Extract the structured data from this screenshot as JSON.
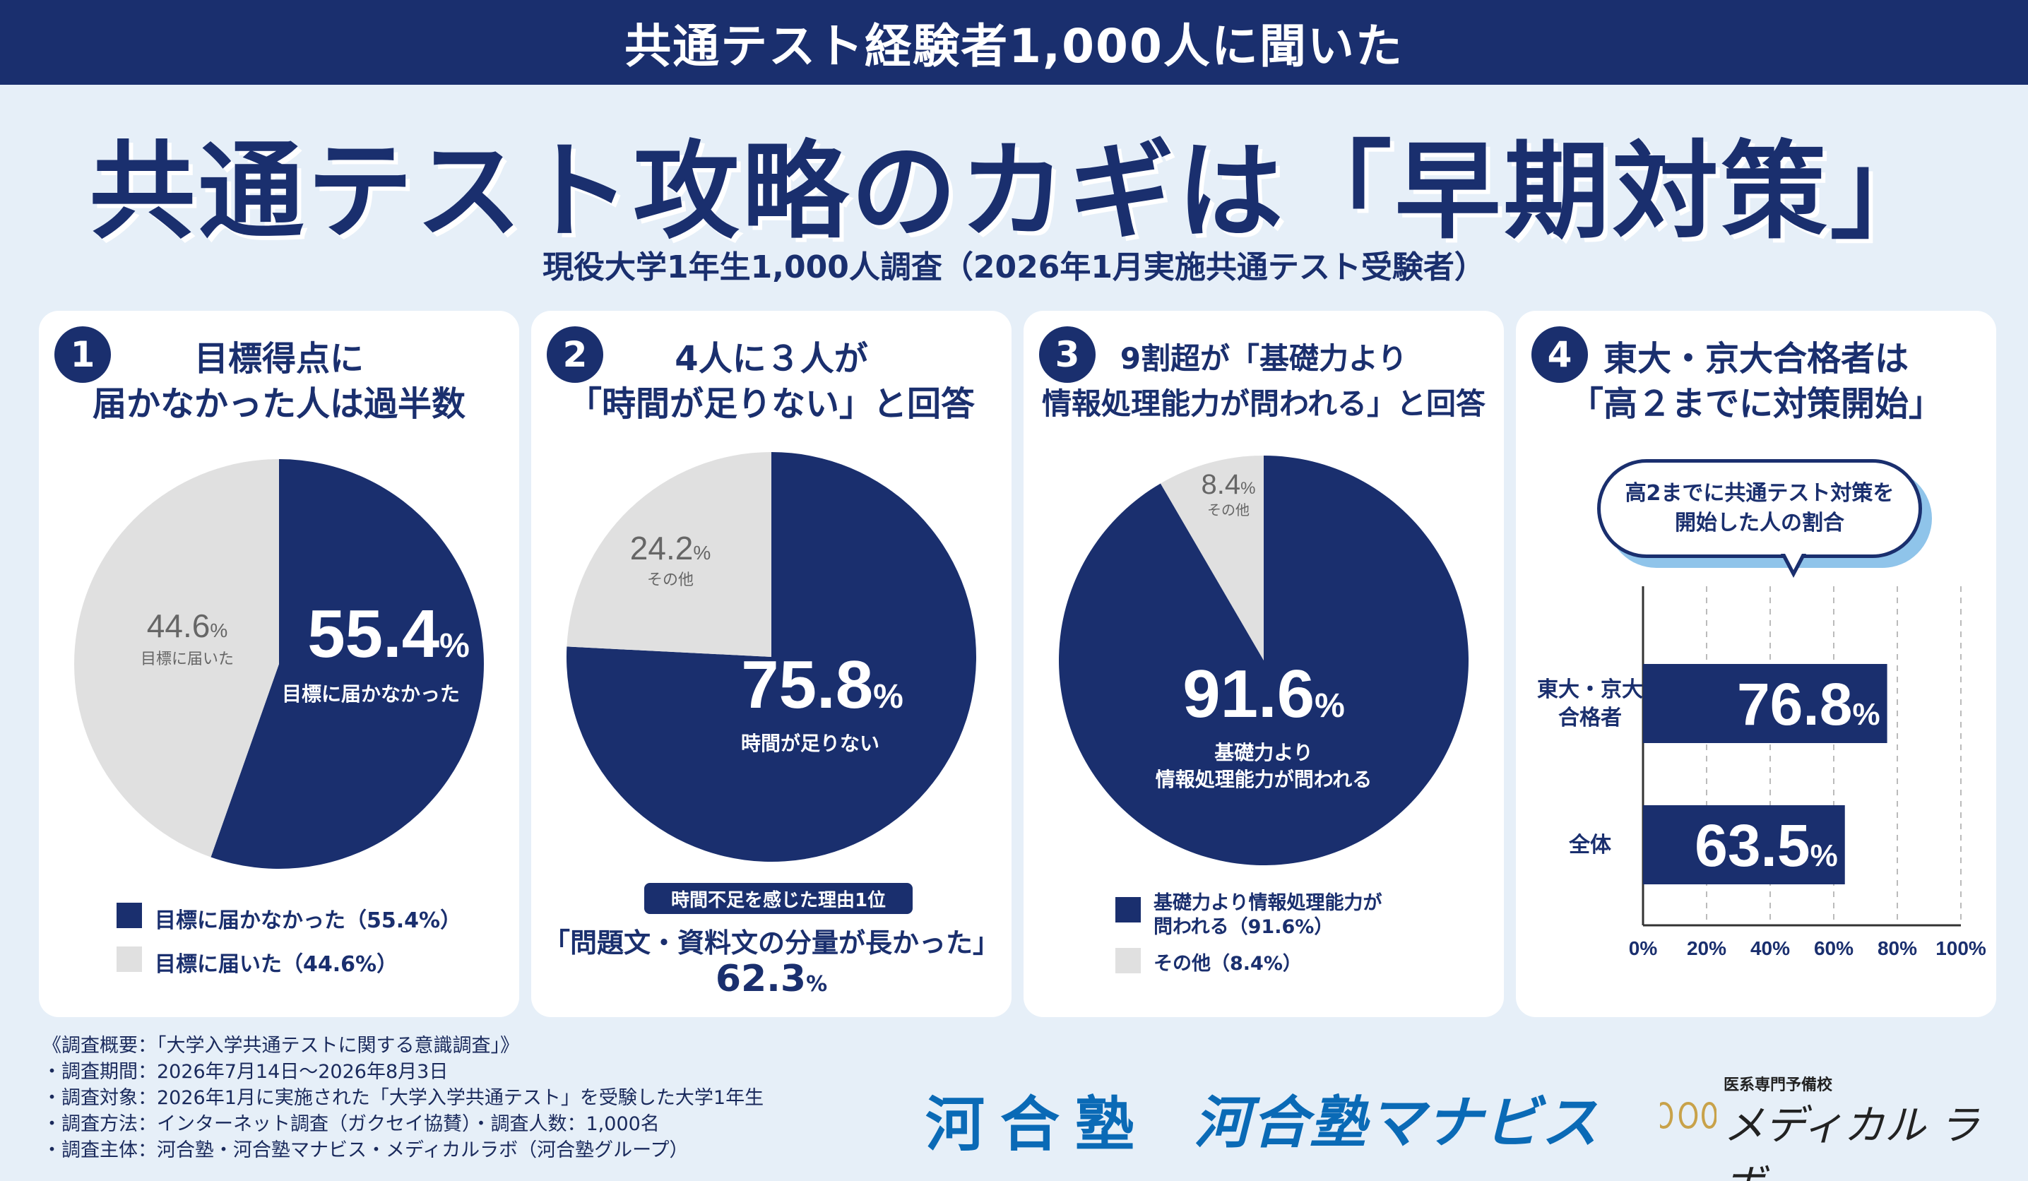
{
  "header": {
    "band": "共通テスト経験者1,000人に聞いた",
    "title": "共通テスト攻略のカギは「早期対策」",
    "subtitle": "現役大学1年生1,000人調査（2026年1月実施共通テスト受験者）"
  },
  "cards": [
    {
      "num": "1",
      "title_line1": "目標得点に",
      "title_line2": "届かなかった人は過半数",
      "main_value": "55.4",
      "main_unit": "%",
      "main_caption": "目標に届かなかった",
      "other_value": "44.6",
      "other_unit": "%",
      "other_caption": "目標に届いた",
      "legend": [
        "目標に届かなかった（55.4%）",
        "目標に届いた（44.6%）"
      ]
    },
    {
      "num": "2",
      "title_line1": "4人に３人が",
      "title_line2": "「時間が足りない」と回答",
      "main_value": "75.8",
      "main_unit": "%",
      "main_caption": "時間が足りない",
      "other_value": "24.2",
      "other_unit": "%",
      "other_caption": "その他",
      "reason_badge": "時間不足を感じた理由1位",
      "reason_text": "「問題文・資料文の分量が長かった」",
      "reason_value": "62.3",
      "reason_unit": "%"
    },
    {
      "num": "3",
      "title_line1": "9割超が「基礎力より",
      "title_line2": "情報処理能力が問われる」と回答",
      "main_value": "91.6",
      "main_unit": "%",
      "main_caption_line1": "基礎力より",
      "main_caption_line2": "情報処理能力が問われる",
      "other_value": "8.4",
      "other_unit": "%",
      "other_caption": "その他",
      "legend_line1": "基礎力より情報処理能力が",
      "legend_line2": "問われる（91.6%）",
      "legend_other": "その他（8.4%）"
    },
    {
      "num": "4",
      "title_line1": "東大・京大合格者は",
      "title_line2": "「高２までに対策開始」",
      "bubble_line1": "高2までに共通テスト対策を",
      "bubble_line2": "開始した人の割合",
      "bar_labels": [
        "東大・京大\n合格者",
        "全体"
      ],
      "bar_label_lines": [
        [
          "東大・京大",
          "合格者"
        ],
        [
          "全体"
        ]
      ],
      "bar_values": [
        "76.8",
        "63.5"
      ],
      "bar_unit": "%",
      "ticks": [
        "0%",
        "20%",
        "40%",
        "60%",
        "80%",
        "100%"
      ]
    }
  ],
  "chart_data": [
    {
      "type": "pie",
      "title": "目標得点に届かなかった人は過半数",
      "slices": [
        {
          "label": "目標に届かなかった",
          "value": 55.4
        },
        {
          "label": "目標に届いた",
          "value": 44.6
        }
      ]
    },
    {
      "type": "pie",
      "title": "「時間が足りない」と回答",
      "slices": [
        {
          "label": "時間が足りない",
          "value": 75.8
        },
        {
          "label": "その他",
          "value": 24.2
        }
      ]
    },
    {
      "type": "pie",
      "title": "情報処理能力が問われる",
      "slices": [
        {
          "label": "基礎力より情報処理能力が問われる",
          "value": 91.6
        },
        {
          "label": "その他",
          "value": 8.4
        }
      ]
    },
    {
      "type": "bar",
      "title": "高2までに共通テスト対策を開始した人の割合",
      "categories": [
        "東大・京大合格者",
        "全体"
      ],
      "values": [
        76.8,
        63.5
      ],
      "xlim": [
        0,
        100
      ],
      "orientation": "horizontal"
    }
  ],
  "footer": {
    "lines": [
      "《調査概要：「大学入学共通テストに関する意識調査」》",
      "・調査期間：2026年7月14日〜2026年8月3日",
      "・調査対象：2026年1月に実施された「大学入学共通テスト」を受験した大学1年生",
      "・調査方法：インターネット調査（ガクセイ協賛）・調査人数：1,000名",
      "・調査主体：河合塾・河合塾マナビス・メディカルラボ（河合塾グループ）"
    ]
  },
  "logos": {
    "kawai": "河合塾",
    "manabis": "河合塾マナビス",
    "medical_sub": "医系専門予備校",
    "medical_main": "メディカル ラボ",
    "registered": "®"
  },
  "colors": {
    "navy": "#1a2f6e",
    "gray": "#e0e0e0",
    "bg": "#e6eff8",
    "blue_logo": "#0a6ab6"
  }
}
